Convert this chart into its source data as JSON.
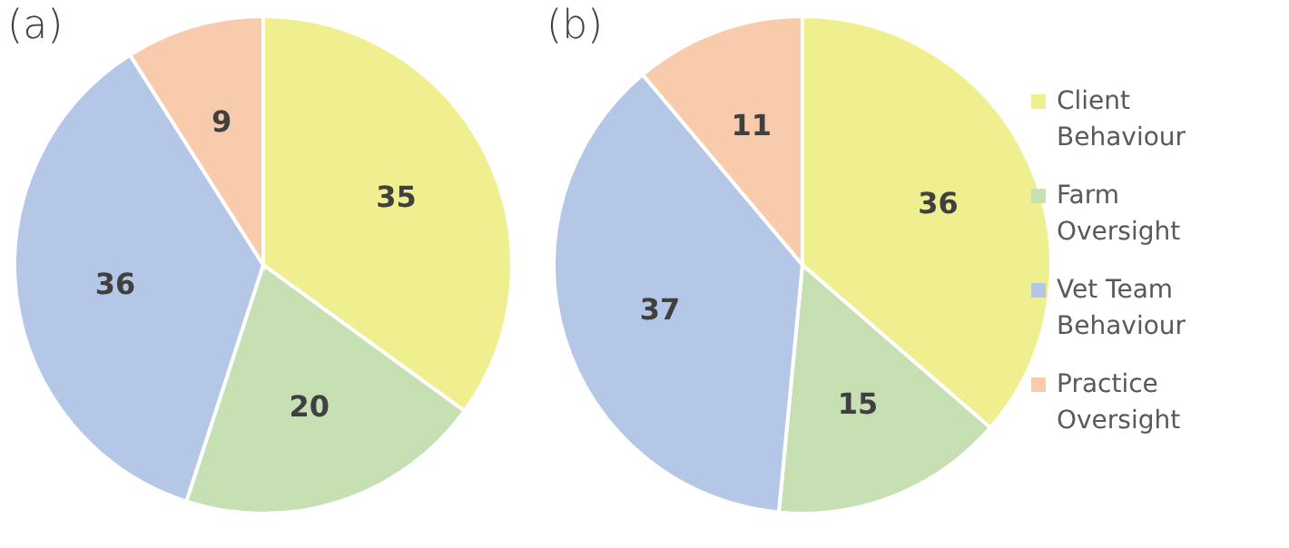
{
  "chart_data": [
    {
      "type": "pie",
      "title": "(a)",
      "categories": [
        "Client Behaviour",
        "Farm Oversight",
        "Vet Team Behaviour",
        "Practice Oversight"
      ],
      "values": [
        35,
        20,
        36,
        9
      ],
      "colors": [
        "#f0ef8f",
        "#c6e0b4",
        "#b4c7e7",
        "#f8cbad"
      ],
      "data_labels": true,
      "legend": "right"
    },
    {
      "type": "pie",
      "title": "(b)",
      "categories": [
        null,
        null,
        null,
        null
      ],
      "values": [
        36,
        15,
        37,
        11
      ],
      "colors": [
        "#f0ef8f",
        "#c6e0b4",
        "#b4c7e7",
        "#f8cbad"
      ],
      "data_labels": true,
      "legend": false
    }
  ]
}
